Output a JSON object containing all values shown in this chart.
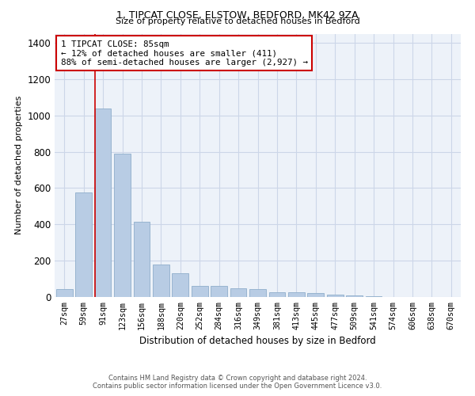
{
  "title1": "1, TIPCAT CLOSE, ELSTOW, BEDFORD, MK42 9ZA",
  "title2": "Size of property relative to detached houses in Bedford",
  "xlabel": "Distribution of detached houses by size in Bedford",
  "ylabel": "Number of detached properties",
  "categories": [
    "27sqm",
    "59sqm",
    "91sqm",
    "123sqm",
    "156sqm",
    "188sqm",
    "220sqm",
    "252sqm",
    "284sqm",
    "316sqm",
    "349sqm",
    "381sqm",
    "413sqm",
    "445sqm",
    "477sqm",
    "509sqm",
    "541sqm",
    "574sqm",
    "606sqm",
    "638sqm",
    "670sqm"
  ],
  "values": [
    45,
    575,
    1040,
    790,
    415,
    180,
    130,
    60,
    60,
    47,
    42,
    28,
    27,
    20,
    12,
    8,
    3,
    2,
    1,
    1,
    1
  ],
  "bar_color": "#b8cce4",
  "bar_edge_color": "#8faecb",
  "vline_color": "#cc0000",
  "annotation_text": "1 TIPCAT CLOSE: 85sqm\n← 12% of detached houses are smaller (411)\n88% of semi-detached houses are larger (2,927) →",
  "annotation_box_color": "#cc0000",
  "ylim": [
    0,
    1450
  ],
  "yticks": [
    0,
    200,
    400,
    600,
    800,
    1000,
    1200,
    1400
  ],
  "footer1": "Contains HM Land Registry data © Crown copyright and database right 2024.",
  "footer2": "Contains public sector information licensed under the Open Government Licence v3.0.",
  "bg_color": "#edf2f9",
  "grid_color": "#ccd6e8"
}
